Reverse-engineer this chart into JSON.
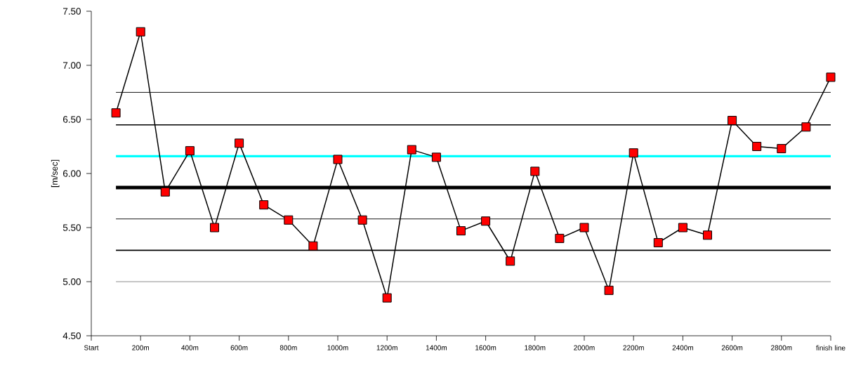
{
  "chart_data": {
    "type": "line",
    "ylabel": "[m/sec]",
    "categories": [
      "Start",
      null,
      "200m",
      null,
      "400m",
      null,
      "600m",
      null,
      "800m",
      null,
      "1000m",
      null,
      "1200m",
      null,
      "1400m",
      null,
      "1600m",
      null,
      "1800m",
      null,
      "2000m",
      null,
      "2200m",
      null,
      "2400m",
      null,
      "2600m",
      null,
      "2800m",
      null,
      "finish line"
    ],
    "series": [
      {
        "color": "#ff0000",
        "values": [
          null,
          6.56,
          7.31,
          5.83,
          6.21,
          5.5,
          6.28,
          5.71,
          5.57,
          5.33,
          6.13,
          5.57,
          4.85,
          6.22,
          6.15,
          5.47,
          5.56,
          5.19,
          6.02,
          5.4,
          5.5,
          4.92,
          6.19,
          5.36,
          5.5,
          5.43,
          6.49,
          6.25,
          6.23,
          6.43,
          6.89
        ]
      }
    ],
    "marker": "square",
    "ylim": [
      4.5,
      7.5
    ],
    "yticks": [
      {
        "value": 4.5,
        "label": "4.50"
      },
      {
        "value": 5.0,
        "label": "5.00"
      },
      {
        "value": 5.5,
        "label": "5.50"
      },
      {
        "value": 6.0,
        "label": "6.00"
      },
      {
        "value": 6.5,
        "label": "6.50"
      },
      {
        "value": 7.0,
        "label": "7.00"
      },
      {
        "value": 7.5,
        "label": "7.50"
      }
    ],
    "ref_lines": [
      {
        "axis": "y",
        "value": 6.75,
        "color": "#000000"
      },
      {
        "axis": "y",
        "value": 6.45,
        "color": "#000000"
      },
      {
        "axis": "y",
        "value": 6.16,
        "color": "#00ffff"
      },
      {
        "axis": "y",
        "value": 5.87,
        "color": "#000000"
      },
      {
        "axis": "y",
        "value": 5.58,
        "color": "#000000"
      },
      {
        "axis": "y",
        "value": 5.29,
        "color": "#000000"
      },
      {
        "axis": "y",
        "value": 5.0,
        "color": "#808080"
      }
    ]
  }
}
